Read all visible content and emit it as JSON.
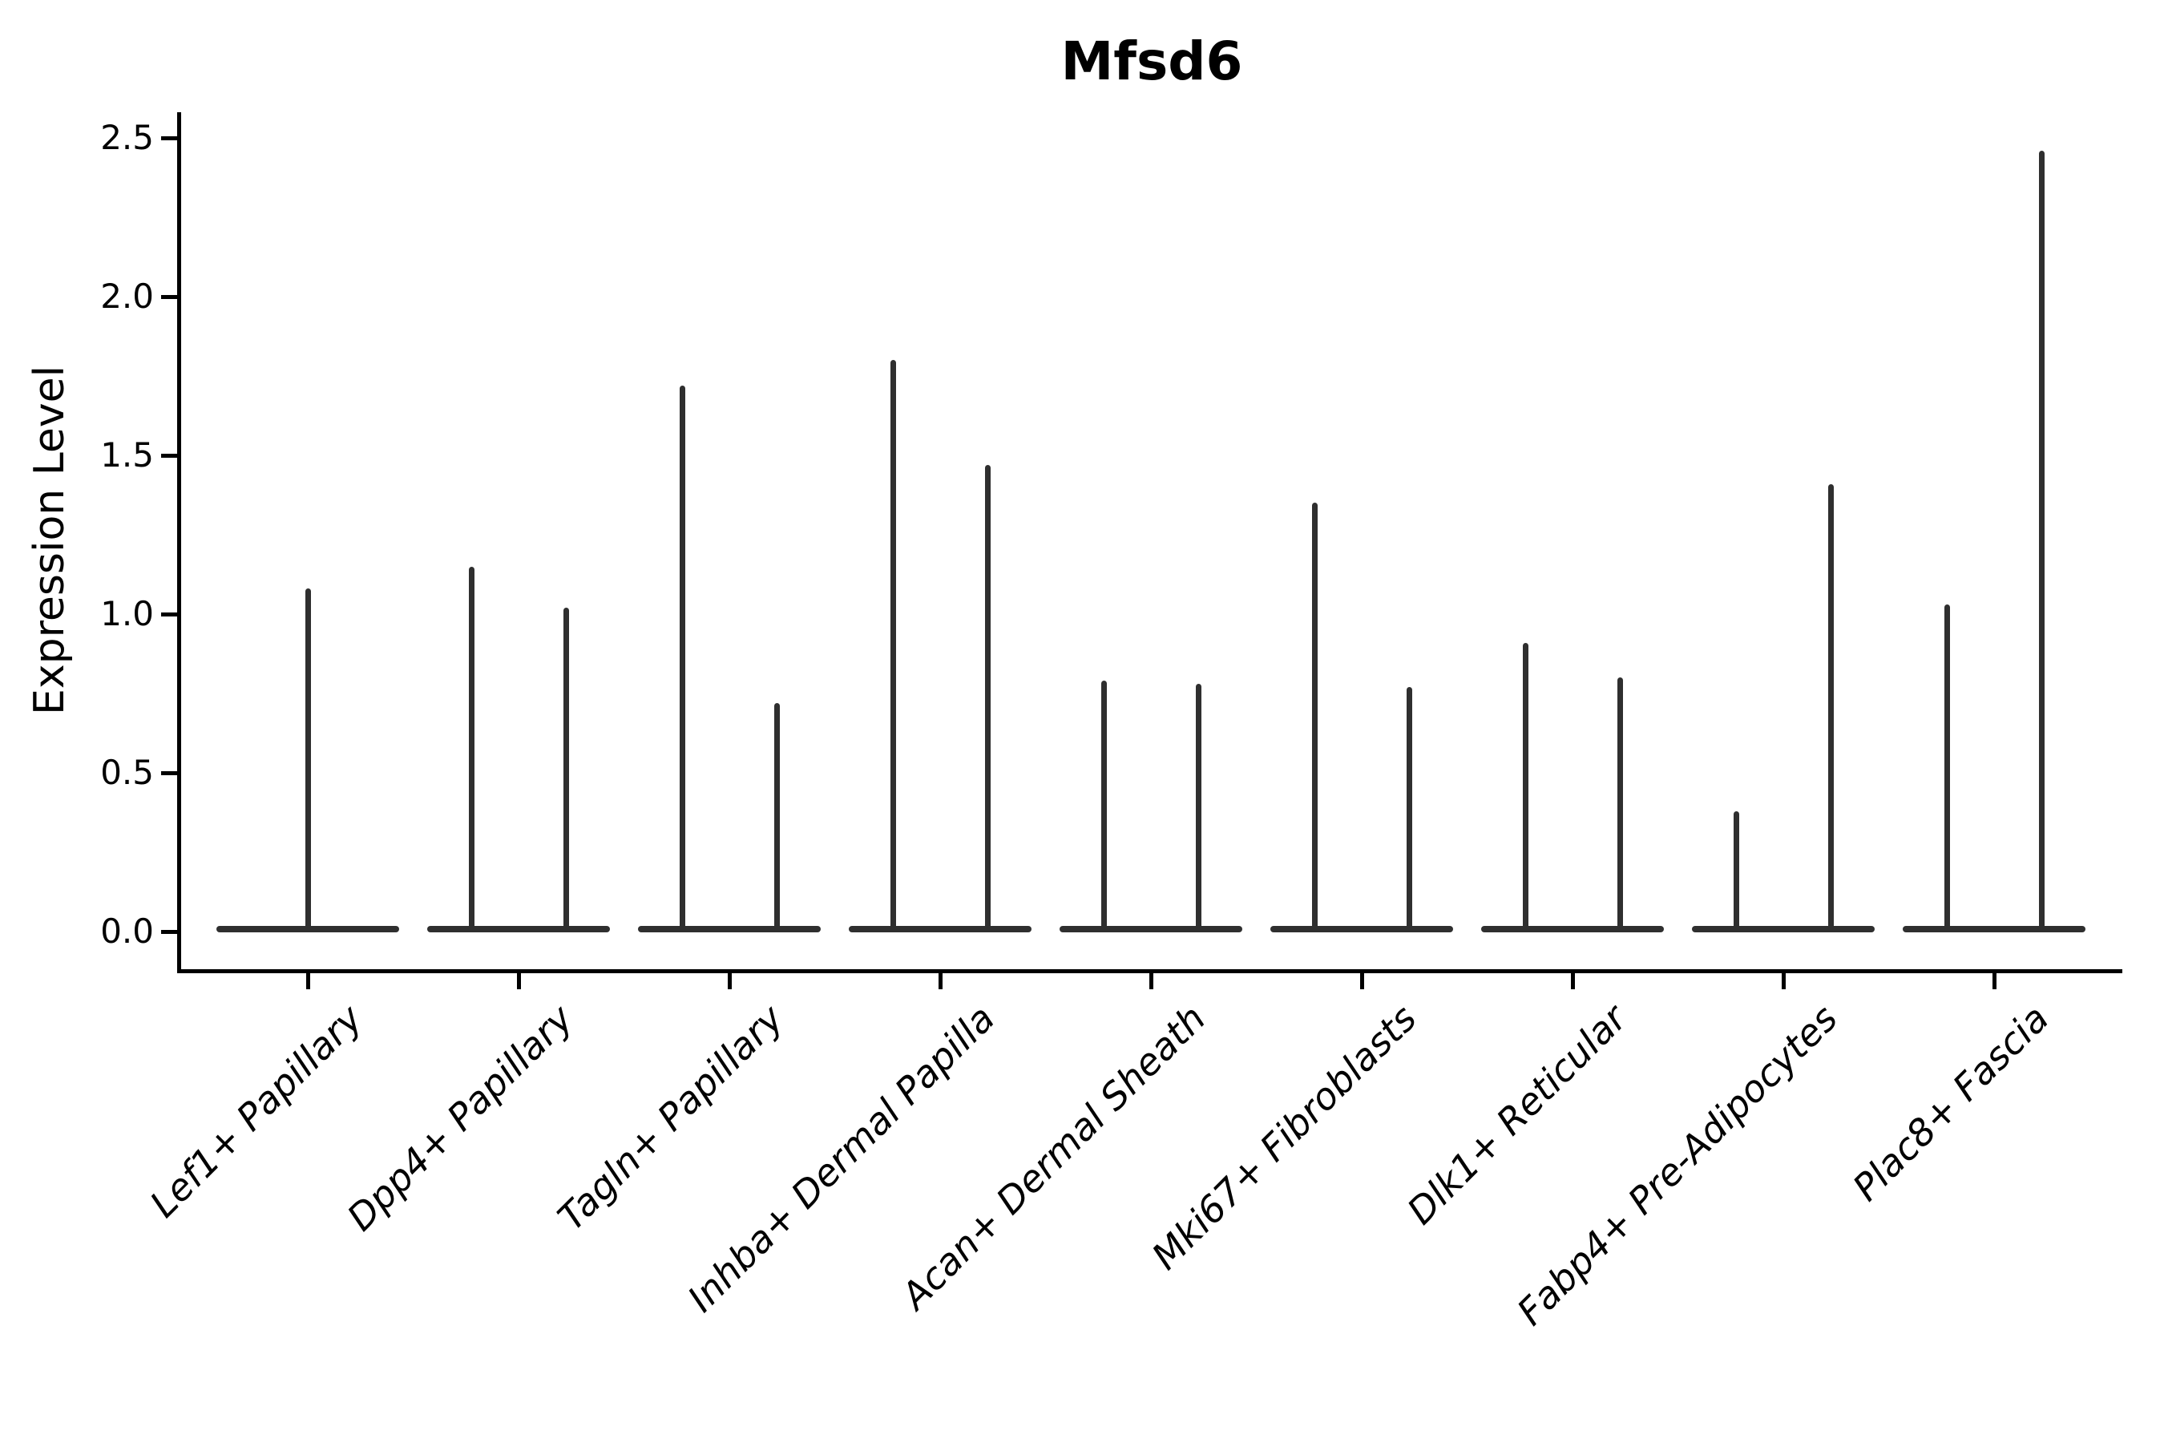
{
  "title": "Mfsd6",
  "y_axis_label": "Expression Level",
  "colors": {
    "violin": "#2f2f2f",
    "axis": "#000000",
    "text": "#000000",
    "background": "#ffffff"
  },
  "chart_data": {
    "type": "violin",
    "title": "Mfsd6",
    "ylabel": "Expression Level",
    "xlabel": "",
    "ylim": [
      0,
      2.58
    ],
    "yticks": [
      0.0,
      0.5,
      1.0,
      1.5,
      2.0,
      2.5
    ],
    "grid": false,
    "legend_position": "none",
    "x_tick_label_rotation_deg": 45,
    "style": "single-cell expression violin plot; near-zero-width violins render as a wide baseline at 0 with thin vertical spikes reaching each group's maximum expression",
    "categories": [
      {
        "label": "Lef1+ Papillary",
        "spikes": [
          {
            "pos": "center",
            "value": 1.08
          }
        ]
      },
      {
        "label": "Dpp4+ Papillary",
        "spikes": [
          {
            "pos": "left",
            "value": 1.15
          },
          {
            "pos": "right",
            "value": 1.02
          }
        ]
      },
      {
        "label": "Tagln+ Papillary",
        "spikes": [
          {
            "pos": "left",
            "value": 1.72
          },
          {
            "pos": "right",
            "value": 0.72
          }
        ]
      },
      {
        "label": "Inhba+ Dermal Papilla",
        "spikes": [
          {
            "pos": "left",
            "value": 1.8
          },
          {
            "pos": "right",
            "value": 1.47
          }
        ]
      },
      {
        "label": "Acan+ Dermal Sheath",
        "spikes": [
          {
            "pos": "left",
            "value": 0.79
          },
          {
            "pos": "right",
            "value": 0.78
          }
        ]
      },
      {
        "label": "Mki67+ Fibroblasts",
        "spikes": [
          {
            "pos": "left",
            "value": 1.35
          },
          {
            "pos": "right",
            "value": 0.77
          }
        ]
      },
      {
        "label": "Dlk1+ Reticular",
        "spikes": [
          {
            "pos": "left",
            "value": 0.91
          },
          {
            "pos": "right",
            "value": 0.8
          }
        ]
      },
      {
        "label": "Fabp4+ Pre-Adipocytes",
        "spikes": [
          {
            "pos": "left",
            "value": 0.38
          },
          {
            "pos": "right",
            "value": 1.41
          }
        ]
      },
      {
        "label": "Plac8+ Fascia",
        "spikes": [
          {
            "pos": "left",
            "value": 1.03
          },
          {
            "pos": "right",
            "value": 2.46
          }
        ]
      }
    ]
  }
}
